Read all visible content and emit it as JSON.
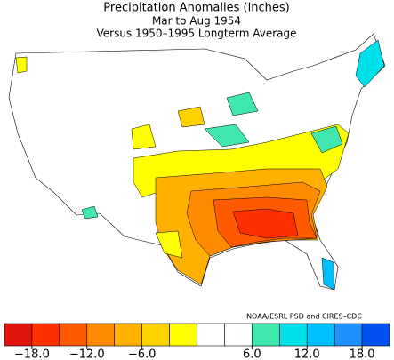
{
  "header": {
    "title": "Precipitation Anomalies (inches)",
    "period": "Mar to Aug 1954",
    "baseline": "Versus 1950–1995 Longterm Average"
  },
  "credit": "NOAA/ESRL PSD and CIRES–CDC",
  "colorbar": {
    "lim": [
      -21,
      21
    ],
    "colors": [
      "#e0140c",
      "#ff3000",
      "#ff5a00",
      "#ff8c00",
      "#ffb000",
      "#ffd200",
      "#ffff00",
      "#ffffff",
      "#ffffff",
      "#40e8b0",
      "#00e0e8",
      "#00c0ff",
      "#1e90ff",
      "#0050f0"
    ],
    "ticks": [
      {
        "value": -18,
        "label": "−18.0"
      },
      {
        "value": -12,
        "label": "−12.0"
      },
      {
        "value": -6,
        "label": "−6.0"
      },
      {
        "value": 6,
        "label": "6.0"
      },
      {
        "value": 12,
        "label": "12.0"
      },
      {
        "value": 18,
        "label": "18.0"
      }
    ]
  }
}
